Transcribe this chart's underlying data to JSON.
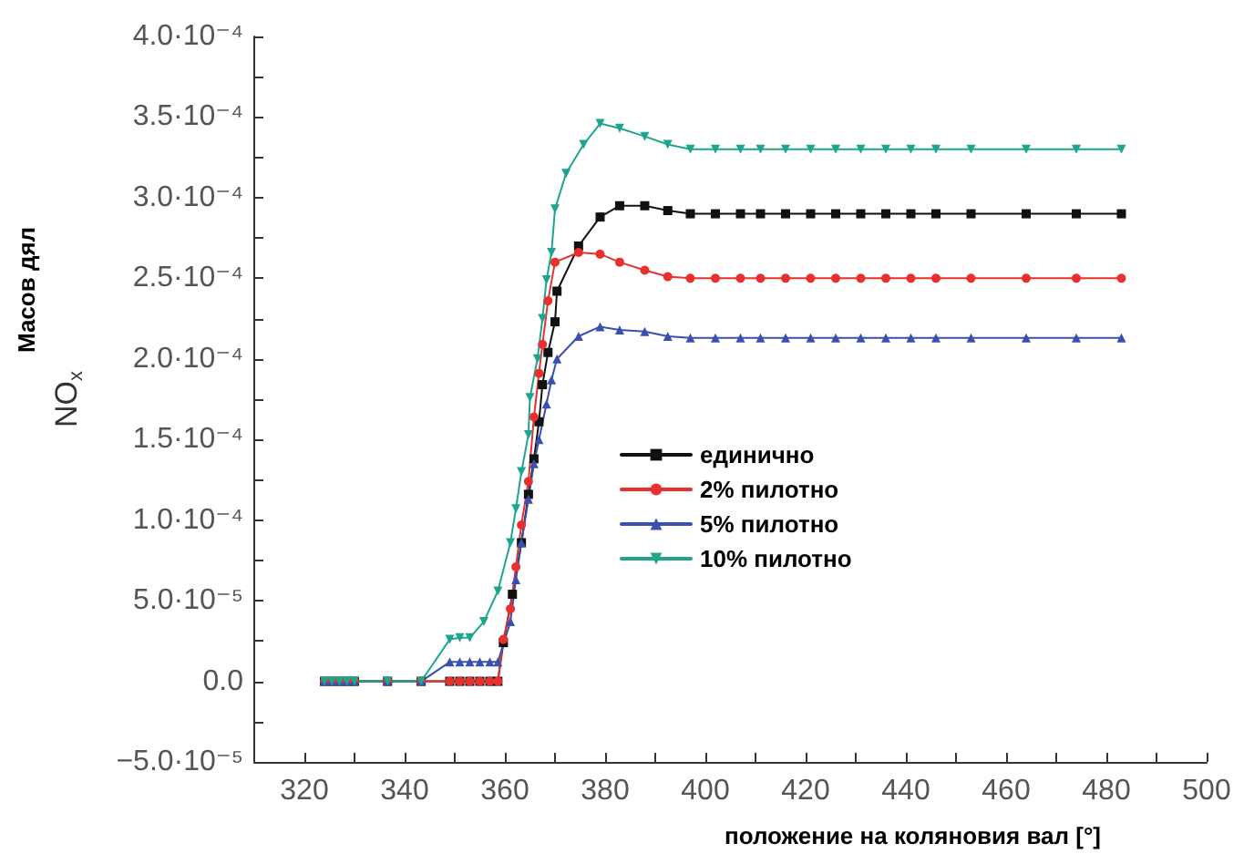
{
  "chart_data": {
    "type": "line",
    "xlabel": "положение на коляновия вал [°]",
    "ylabel": "Масов дял\nNO$_{x}$",
    "xlim": [
      310,
      500
    ],
    "xticks": [
      320,
      {
        "value": 330,
        "label": null
      },
      340,
      {
        "value": 350,
        "label": null
      },
      360,
      {
        "value": 370,
        "label": null
      },
      380,
      {
        "value": 390,
        "label": null
      },
      400,
      {
        "value": 410,
        "label": null
      },
      420,
      {
        "value": 430,
        "label": null
      },
      440,
      {
        "value": 450,
        "label": null
      },
      460,
      {
        "value": 470,
        "label": null
      },
      480,
      {
        "value": 490,
        "label": null
      },
      500
    ],
    "ylim": [
      -5e-05,
      0.0004
    ],
    "yticks": [
      {
        "value": -5e-05,
        "label": "−5.0·10⁻⁵"
      },
      {
        "value": -2.5e-05,
        "label": null
      },
      {
        "value": 0,
        "label": "0.0"
      },
      {
        "value": 2.5e-05,
        "label": null
      },
      {
        "value": 5e-05,
        "label": "5.0·10⁻⁵"
      },
      {
        "value": 7.5e-05,
        "label": null
      },
      {
        "value": 0.0001,
        "label": "1.0·10⁻⁴"
      },
      {
        "value": 0.000125,
        "label": null
      },
      {
        "value": 0.00015,
        "label": "1.5·10⁻⁴"
      },
      {
        "value": 0.000175,
        "label": null
      },
      {
        "value": 0.0002,
        "label": "2.0·10⁻⁴"
      },
      {
        "value": 0.000225,
        "label": null
      },
      {
        "value": 0.00025,
        "label": "2.5·10⁻⁴"
      },
      {
        "value": 0.000275,
        "label": null
      },
      {
        "value": 0.0003,
        "label": "3.0·10⁻⁴"
      },
      {
        "value": 0.000325,
        "label": null
      },
      {
        "value": 0.00035,
        "label": "3.5·10⁻⁴"
      },
      {
        "value": 0.000375,
        "label": null
      },
      {
        "value": 0.0004,
        "label": "4.0·10⁻⁴"
      }
    ],
    "grid": false,
    "legend": "center",
    "line_style": "solid",
    "series": [
      {
        "name": "единично",
        "color": "#111111",
        "marker": "square",
        "x": [
          324,
          325.5,
          327,
          328.5,
          330,
          336.6,
          343.3,
          349,
          351,
          353,
          355,
          357,
          358.6,
          359.7,
          361.5,
          363.3,
          364.7,
          365.8,
          366.8,
          367.5,
          368.6,
          370,
          370.4,
          374.7,
          379,
          382.9,
          387.9,
          392.5,
          397,
          402,
          407,
          411,
          416,
          421,
          426,
          431,
          436,
          441,
          446,
          453,
          464,
          474,
          483
        ],
        "values": [
          0,
          0,
          0,
          0,
          0,
          0,
          0,
          0,
          0,
          0,
          0,
          0,
          0,
          2.4e-05,
          5.4e-05,
          8.6e-05,
          0.000116,
          0.000138,
          0.000161,
          0.000184,
          0.000204,
          0.000223,
          0.000242,
          0.00027,
          0.000288,
          0.000295,
          0.000295,
          0.000292,
          0.00029,
          0.00029,
          0.00029,
          0.00029,
          0.00029,
          0.00029,
          0.00029,
          0.00029,
          0.00029,
          0.00029,
          0.00029,
          0.00029,
          0.00029,
          0.00029,
          0.00029
        ]
      },
      {
        "name": "2% пилотно",
        "color": "#e8312f",
        "marker": "circle",
        "x": [
          324,
          325.5,
          327,
          328.5,
          330,
          336.6,
          343.3,
          349,
          351,
          353,
          355,
          357,
          358.6,
          359.7,
          361.1,
          362.2,
          363.3,
          364.7,
          365.8,
          366.8,
          367.5,
          368.6,
          370,
          374.7,
          379,
          382.9,
          387.9,
          392.5,
          397,
          402,
          407,
          411,
          416,
          421,
          426,
          431,
          436,
          441,
          446,
          453,
          464,
          474,
          483
        ],
        "values": [
          0,
          0,
          0,
          0,
          0,
          0,
          0,
          0,
          0,
          0,
          0,
          0,
          0,
          2.6e-05,
          4.5e-05,
          7.1e-05,
          9.7e-05,
          0.000124,
          0.000164,
          0.000191,
          0.000209,
          0.000236,
          0.00026,
          0.000266,
          0.000265,
          0.00026,
          0.000255,
          0.000251,
          0.00025,
          0.00025,
          0.00025,
          0.00025,
          0.00025,
          0.00025,
          0.00025,
          0.00025,
          0.00025,
          0.00025,
          0.00025,
          0.00025,
          0.00025,
          0.00025,
          0.00025
        ]
      },
      {
        "name": "5% пилотно",
        "color": "#3a4fb0",
        "marker": "triangle",
        "x": [
          324,
          325.5,
          327,
          328.5,
          330,
          336.6,
          343.3,
          349,
          351,
          353,
          355,
          357,
          358.6,
          361.1,
          362.2,
          363.3,
          364.7,
          365.8,
          366.8,
          368.3,
          369.3,
          370.4,
          374.7,
          379,
          382.9,
          387.9,
          392.5,
          397,
          402,
          407,
          411,
          416,
          421,
          426,
          431,
          436,
          441,
          446,
          453,
          464,
          474,
          483
        ],
        "values": [
          0,
          0,
          0,
          0,
          0,
          0,
          0,
          1.2e-05,
          1.2e-05,
          1.2e-05,
          1.2e-05,
          1.2e-05,
          1.2e-05,
          3.7e-05,
          6.3e-05,
          8.6e-05,
          0.000113,
          0.000135,
          0.00015,
          0.000172,
          0.000187,
          0.0002,
          0.000214,
          0.00022,
          0.000218,
          0.000217,
          0.000214,
          0.000213,
          0.000213,
          0.000213,
          0.000213,
          0.000213,
          0.000213,
          0.000213,
          0.000213,
          0.000213,
          0.000213,
          0.000213,
          0.000213,
          0.000213,
          0.000213,
          0.000213
        ]
      },
      {
        "name": "10% пилотно",
        "color": "#1fa58f",
        "marker": "triangle-down",
        "x": [
          324,
          325.5,
          327,
          328.5,
          330,
          336.6,
          343.3,
          349,
          351,
          353,
          355.8,
          358.6,
          361.1,
          362.2,
          363.3,
          364.7,
          365,
          366.5,
          367.5,
          368.3,
          369.3,
          370,
          372.2,
          375.7,
          379,
          382.9,
          387.9,
          392.5,
          397,
          402,
          407,
          411,
          416,
          421,
          426,
          431,
          436,
          441,
          446,
          453,
          464,
          474,
          483
        ],
        "values": [
          0,
          0,
          0,
          0,
          0,
          0,
          0,
          2.6e-05,
          2.7e-05,
          2.7e-05,
          3.7e-05,
          5.6e-05,
          8.6e-05,
          0.000107,
          0.00013,
          0.000153,
          0.000176,
          0.0002,
          0.000225,
          0.000249,
          0.000266,
          0.000293,
          0.000315,
          0.000333,
          0.000346,
          0.000343,
          0.000338,
          0.000333,
          0.00033,
          0.00033,
          0.00033,
          0.00033,
          0.00033,
          0.00033,
          0.00033,
          0.00033,
          0.00033,
          0.00033,
          0.00033,
          0.00033,
          0.00033,
          0.00033,
          0.00033
        ]
      }
    ]
  }
}
